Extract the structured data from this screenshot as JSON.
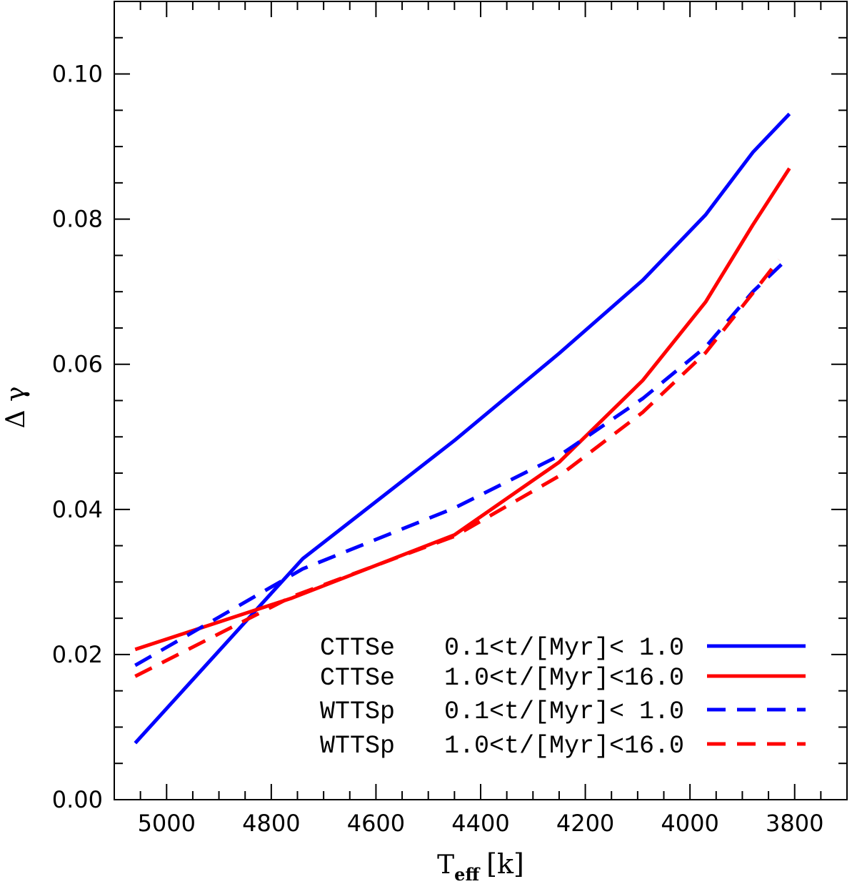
{
  "chart_data": {
    "type": "line",
    "title": "",
    "xlabel": {
      "main": "T",
      "sub": "eff",
      "unit": "[k]"
    },
    "ylabel": "Δ γ",
    "xlim": [
      5100,
      3700
    ],
    "ylim": [
      0.0,
      0.11
    ],
    "x_ticks": [
      5000,
      4800,
      4600,
      4400,
      4200,
      4000,
      3800
    ],
    "x_tick_labels": [
      "5000",
      "4800",
      "4600",
      "4400",
      "4200",
      "4000",
      "3800"
    ],
    "y_ticks": [
      0.0,
      0.02,
      0.04,
      0.06,
      0.08,
      0.1
    ],
    "y_tick_labels": [
      "0.00",
      "0.02",
      "0.04",
      "0.06",
      "0.08",
      "0.10"
    ],
    "series": [
      {
        "name": "CTTSe",
        "range": "0.1<t/[Myr]< 1.0",
        "color": "#0000ff",
        "style": "solid",
        "x": [
          5060,
          4740,
          4450,
          4250,
          4090,
          3970,
          3880,
          3810
        ],
        "y": [
          0.0078,
          0.0332,
          0.0495,
          0.0615,
          0.0716,
          0.0806,
          0.0892,
          0.0945
        ]
      },
      {
        "name": "CTTSe",
        "range": "1.0<t/[Myr]<16.0",
        "color": "#ff0000",
        "style": "solid",
        "x": [
          5060,
          4760,
          4450,
          4250,
          4090,
          3970,
          3880,
          3810
        ],
        "y": [
          0.0207,
          0.0278,
          0.0365,
          0.0465,
          0.0578,
          0.0686,
          0.0792,
          0.087
        ]
      },
      {
        "name": "WTTSp",
        "range": "0.1<t/[Myr]< 1.0",
        "color": "#0000ff",
        "style": "dashed",
        "x": [
          5060,
          4740,
          4450,
          4250,
          4090,
          3970,
          3880,
          3810
        ],
        "y": [
          0.0185,
          0.0318,
          0.0402,
          0.0474,
          0.0553,
          0.0624,
          0.07,
          0.0748
        ]
      },
      {
        "name": "WTTSp",
        "range": "1.0<t/[Myr]<16.0",
        "color": "#ff0000",
        "style": "dashed",
        "x": [
          5060,
          4760,
          4450,
          4250,
          4090,
          3970,
          3880,
          3830
        ],
        "y": [
          0.017,
          0.028,
          0.0363,
          0.0446,
          0.0534,
          0.0616,
          0.0698,
          0.0744
        ]
      }
    ]
  }
}
